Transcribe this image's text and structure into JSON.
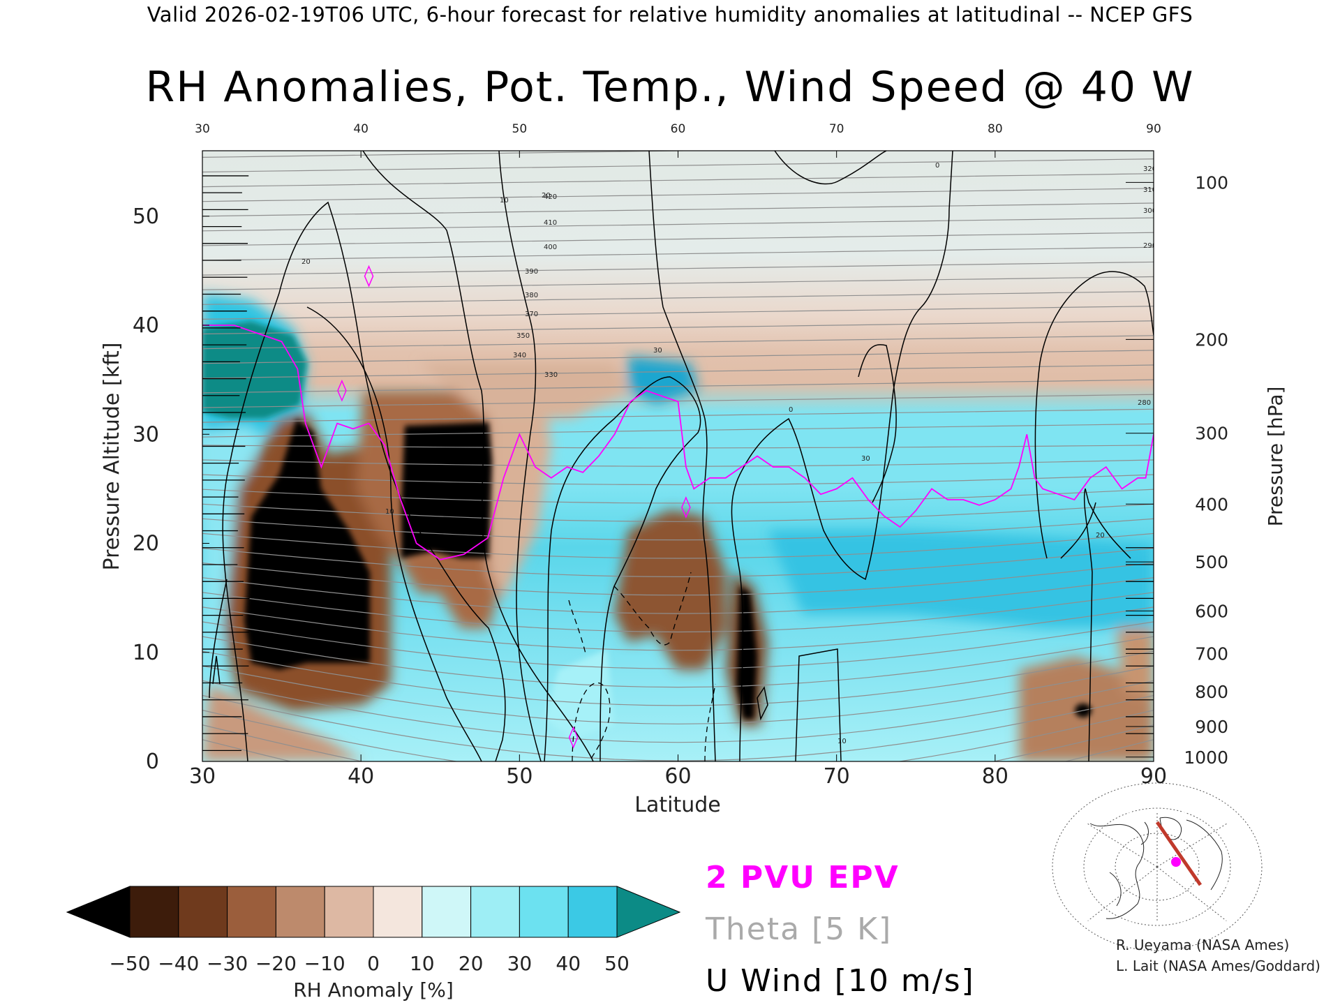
{
  "header": "Valid 2026-02-19T06 UTC, 6-hour forecast for relative humidity anomalies at latitudinal -- NCEP GFS",
  "chart_data": {
    "type": "heatmap",
    "title": "RH Anomalies, Pot. Temp., Wind Speed @ 40 W",
    "xlabel": "Latitude",
    "ylabel_left": "Pressure Altitude [kft]",
    "ylabel_right": "Pressure [hPa]",
    "xlim": [
      30,
      90
    ],
    "ylim": [
      0,
      56
    ],
    "x_ticks": [
      "30",
      "40",
      "50",
      "60",
      "70",
      "80",
      "90"
    ],
    "top_ticks": [
      "30",
      "40",
      "50",
      "60",
      "70",
      "80",
      "90"
    ],
    "y_ticks": [
      "0",
      "10",
      "20",
      "30",
      "40",
      "50"
    ],
    "pressure_ticks": [
      {
        "label": "1000",
        "kft": 0.4
      },
      {
        "label": "900",
        "kft": 3.2
      },
      {
        "label": "800",
        "kft": 6.4
      },
      {
        "label": "700",
        "kft": 9.9
      },
      {
        "label": "600",
        "kft": 13.8
      },
      {
        "label": "500",
        "kft": 18.3
      },
      {
        "label": "400",
        "kft": 23.6
      },
      {
        "label": "300",
        "kft": 30.1
      },
      {
        "label": "200",
        "kft": 38.7
      },
      {
        "label": "100",
        "kft": 53.1
      }
    ],
    "colorbar": {
      "label": "RH Anomaly [%]",
      "ticks": [
        "-50",
        "-40",
        "-30",
        "-20",
        "-10",
        "0",
        "10",
        "20",
        "30",
        "40",
        "50"
      ],
      "colors": [
        "#3d1c0b",
        "#6f3a1d",
        "#9b5e3c",
        "#bd8a6c",
        "#ddb8a3",
        "#f4e6dd",
        "#cff7f8",
        "#9eeef5",
        "#6ce1f0",
        "#3bc9e5",
        "#1596c2"
      ],
      "under_color": "#000000",
      "over_color": "#0c8b86"
    },
    "legend": [
      {
        "label": "2 PVU EPV",
        "color": "#ff00ff"
      },
      {
        "label": "Theta [5 K]",
        "color": "#aaaaaa"
      },
      {
        "label": "U Wind [10 m/s]",
        "color": "#000000"
      }
    ],
    "theta_labels": [
      "420",
      "410",
      "400",
      "390",
      "380",
      "370",
      "350",
      "340",
      "330",
      "320",
      "310",
      "300",
      "290",
      "280"
    ],
    "wind_labels": [
      "10",
      "20",
      "30",
      "0"
    ],
    "epv_2pvu_line": {
      "lat": [
        30,
        32,
        34,
        35,
        36,
        36.5,
        37.5,
        38.5,
        39.5,
        40.5,
        41.5,
        42.5,
        43.5,
        45,
        46.5,
        48,
        49,
        50,
        51,
        52,
        53,
        54,
        55,
        56,
        57,
        58,
        59,
        60,
        60.5,
        61,
        62,
        63,
        64,
        65,
        66,
        67,
        68,
        69,
        70,
        71,
        72,
        73,
        74,
        75,
        76,
        77,
        78,
        79,
        80,
        81,
        81.5,
        82,
        82.5,
        83,
        84,
        85,
        86,
        87,
        88,
        89,
        89.5,
        90
      ],
      "kft": [
        40,
        40,
        39,
        38.5,
        36,
        31,
        27,
        31,
        30.5,
        31,
        29,
        24,
        20,
        18.5,
        19,
        20.5,
        26,
        30,
        27,
        26,
        27,
        26.5,
        28,
        30,
        33,
        34,
        33.5,
        33,
        27,
        25,
        26,
        26,
        27,
        28,
        27,
        27,
        26,
        24.5,
        25,
        26,
        24,
        22.5,
        21.5,
        23,
        25,
        24,
        24,
        23.5,
        24,
        25,
        27,
        30,
        26,
        25,
        24.5,
        24,
        26,
        27,
        25,
        26,
        26,
        30
      ]
    },
    "epv_2pvu_small_contours": [
      {
        "lat": 40.5,
        "kft": 44.5
      },
      {
        "lat": 38.8,
        "kft": 34.0
      },
      {
        "lat": 53.4,
        "kft": 2.2
      },
      {
        "lat": 60.5,
        "kft": 23.3
      }
    ]
  },
  "credits": {
    "line1": "R. Ueyama (NASA Ames)",
    "line2": "L. Lait (NASA Ames/Goddard)"
  }
}
